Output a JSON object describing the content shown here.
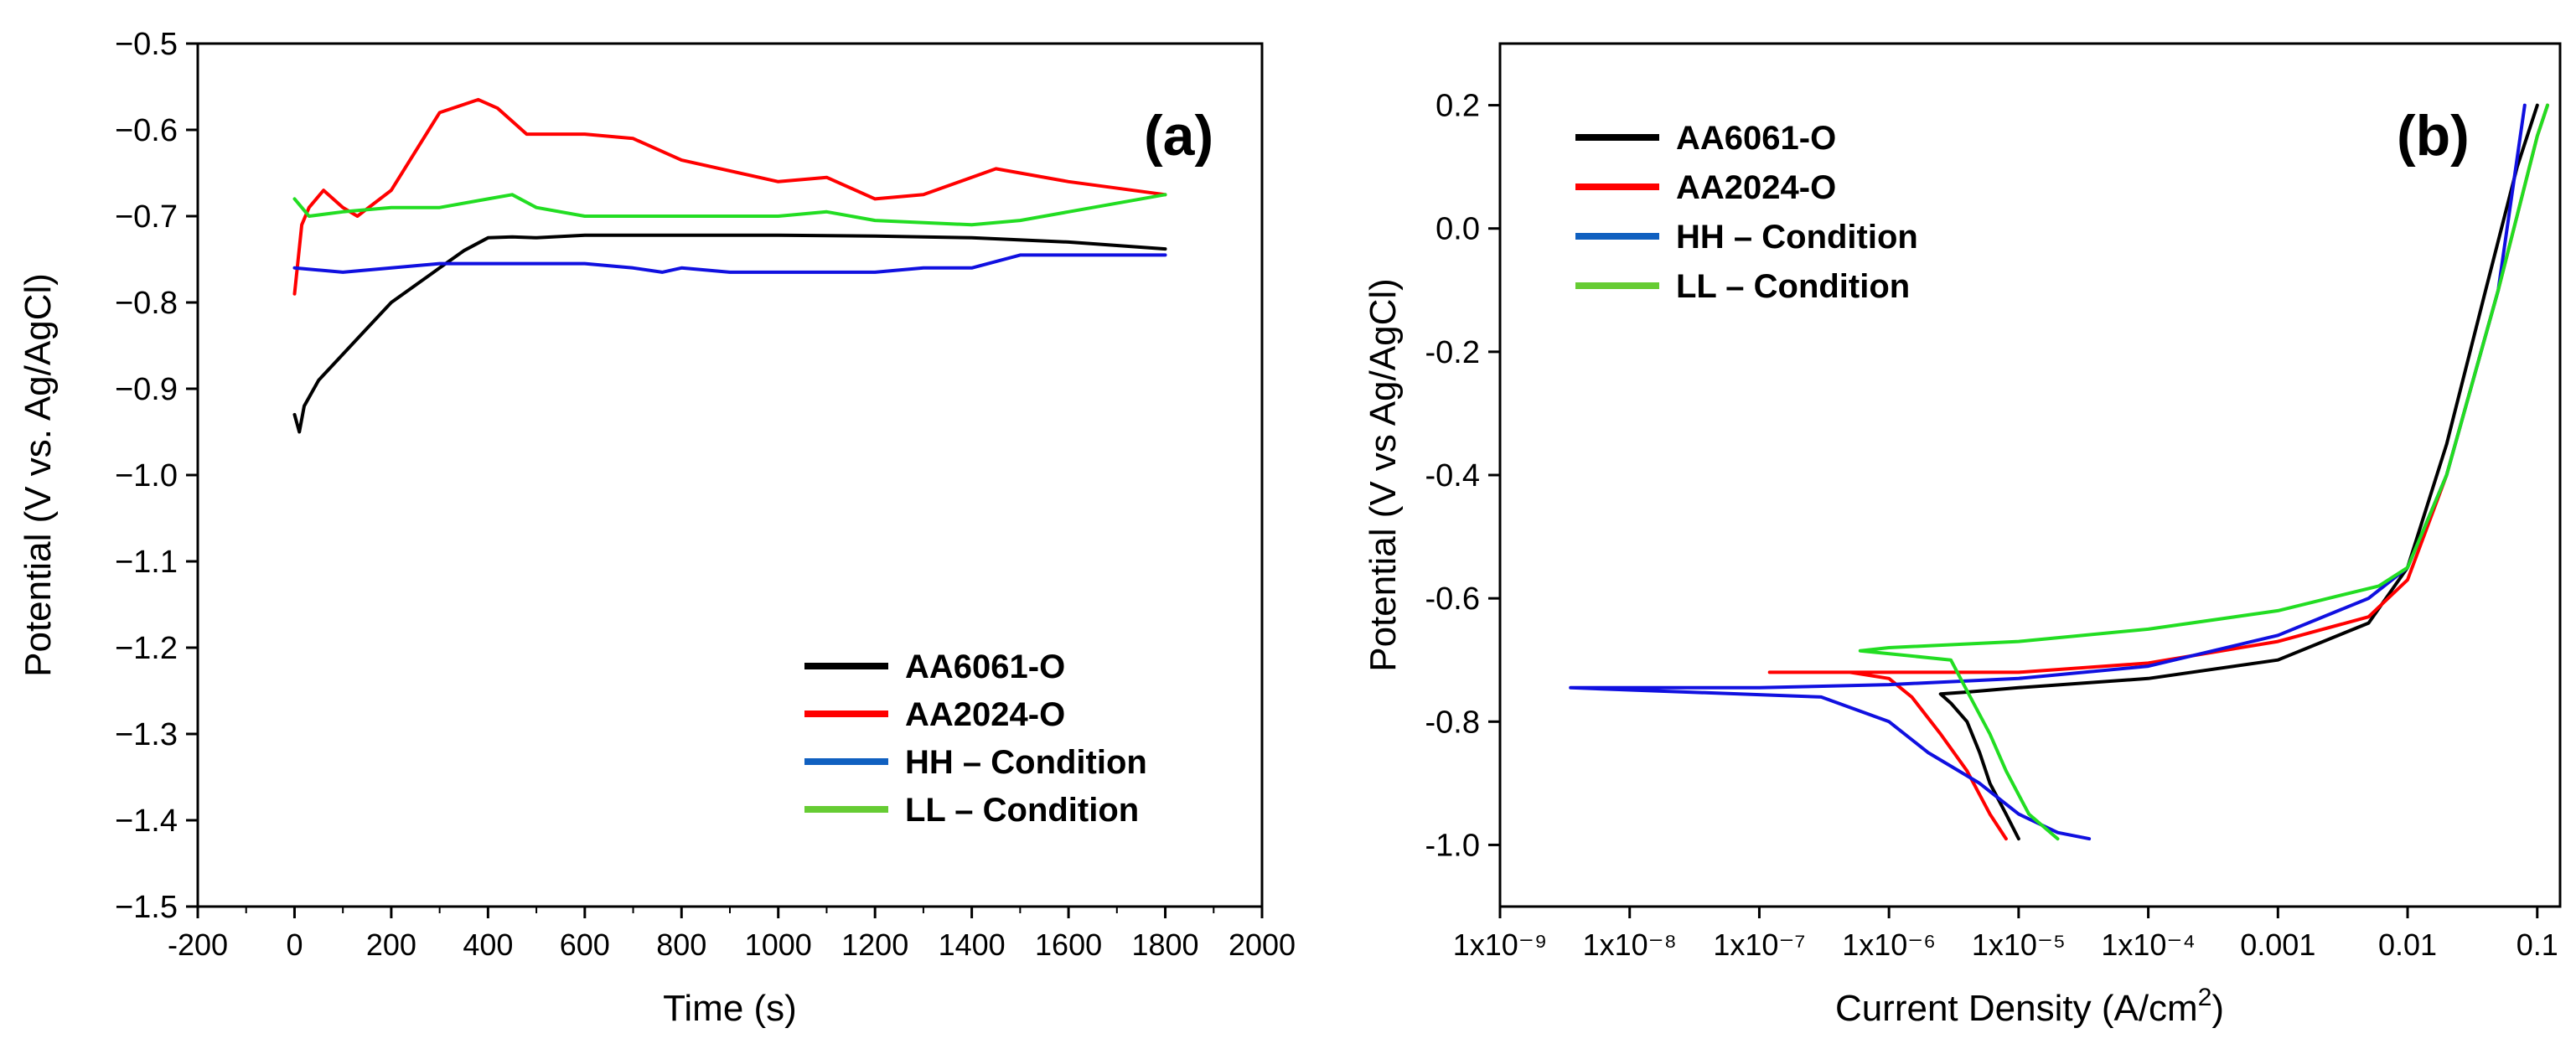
{
  "chart_data": [
    {
      "type": "line",
      "panel_label": "(a)",
      "xlabel": "Time (s)",
      "ylabel": "Potential (V vs. Ag/AgCl)",
      "xlim": [
        -200,
        2000
      ],
      "ylim": [
        -1.5,
        -0.5
      ],
      "y_inverted": true,
      "grid": false,
      "legend_position": "bottom-right",
      "x_ticks": [
        -200,
        0,
        200,
        400,
        600,
        800,
        1000,
        1200,
        1400,
        1600,
        1800,
        2000
      ],
      "x_tick_labels": [
        "-200",
        "0",
        "200",
        "400",
        "600",
        "800",
        "1000",
        "1200",
        "1400",
        "1600",
        "1800",
        "2000"
      ],
      "y_ticks": [
        -0.5,
        -0.6,
        -0.7,
        -0.8,
        -0.9,
        -1.0,
        -1.1,
        -1.2,
        -1.3,
        -1.4,
        -1.5
      ],
      "y_tick_labels": [
        "−0.5",
        "−0.6",
        "−0.7",
        "−0.8",
        "−0.9",
        "−1.0",
        "−1.1",
        "−1.2",
        "−1.3",
        "−1.4",
        "−1.5"
      ],
      "series": [
        {
          "name": "AA6061-O",
          "color": "#000000",
          "x": [
            0,
            10,
            20,
            50,
            100,
            150,
            200,
            250,
            300,
            350,
            400,
            450,
            500,
            600,
            800,
            1000,
            1200,
            1400,
            1600,
            1800
          ],
          "y": [
            -0.93,
            -0.95,
            -0.92,
            -0.89,
            -0.86,
            -0.83,
            -0.8,
            -0.78,
            -0.76,
            -0.74,
            -0.725,
            -0.724,
            -0.725,
            -0.722,
            -0.722,
            -0.722,
            -0.723,
            -0.725,
            -0.73,
            -0.738
          ]
        },
        {
          "name": "AA2024-O",
          "color": "#ff0000",
          "x": [
            0,
            15,
            30,
            60,
            100,
            130,
            200,
            300,
            380,
            420,
            480,
            600,
            700,
            800,
            1000,
            1100,
            1200,
            1300,
            1450,
            1600,
            1800
          ],
          "y": [
            -0.79,
            -0.71,
            -0.69,
            -0.67,
            -0.69,
            -0.7,
            -0.67,
            -0.58,
            -0.565,
            -0.575,
            -0.605,
            -0.605,
            -0.61,
            -0.635,
            -0.66,
            -0.655,
            -0.68,
            -0.675,
            -0.645,
            -0.66,
            -0.675
          ]
        },
        {
          "name": "HH – Condition",
          "color": "#1010e0",
          "x": [
            0,
            100,
            200,
            300,
            400,
            500,
            600,
            700,
            760,
            800,
            900,
            1000,
            1100,
            1200,
            1300,
            1400,
            1500,
            1600,
            1700,
            1800
          ],
          "y": [
            -0.76,
            -0.765,
            -0.76,
            -0.755,
            -0.755,
            -0.755,
            -0.755,
            -0.76,
            -0.765,
            -0.76,
            -0.765,
            -0.765,
            -0.765,
            -0.765,
            -0.76,
            -0.76,
            -0.745,
            -0.745,
            -0.745,
            -0.745
          ]
        },
        {
          "name": "LL – Condition",
          "color": "#22dd22",
          "x": [
            0,
            30,
            100,
            200,
            300,
            400,
            450,
            500,
            600,
            800,
            1000,
            1100,
            1200,
            1400,
            1500,
            1600,
            1800
          ],
          "y": [
            -0.68,
            -0.7,
            -0.695,
            -0.69,
            -0.69,
            -0.68,
            -0.675,
            -0.69,
            -0.7,
            -0.7,
            -0.7,
            -0.695,
            -0.705,
            -0.71,
            -0.705,
            -0.695,
            -0.675
          ]
        }
      ]
    },
    {
      "type": "line",
      "panel_label": "(b)",
      "xlabel": "Current Density (A/cm",
      "xlabel_superscript": "2",
      "xlabel_suffix": ")",
      "ylabel": "Potential (V vs Ag/AgCl)",
      "x_scale": "log",
      "xlim": [
        1e-09,
        0.15
      ],
      "ylim": [
        -1.1,
        0.3
      ],
      "grid": false,
      "legend_position": "top-left",
      "x_ticks": [
        1e-09,
        1e-08,
        1e-07,
        1e-06,
        1e-05,
        0.0001,
        0.001,
        0.01,
        0.1
      ],
      "x_tick_labels": [
        "1x10⁻⁹",
        "1x10⁻⁸",
        "1x10⁻⁷",
        "1x10⁻⁶",
        "1x10⁻⁵",
        "1x10⁻⁴",
        "0.001",
        "0.01",
        "0.1"
      ],
      "y_ticks": [
        0.2,
        0.0,
        -0.2,
        -0.4,
        -0.6,
        -0.8,
        -1.0
      ],
      "y_tick_labels": [
        "0.2",
        "0.0",
        "-0.2",
        "-0.4",
        "-0.6",
        "-0.8",
        "-1.0"
      ],
      "series": [
        {
          "name": "AA6061-O",
          "color": "#000000",
          "x": [
            1e-05,
            8e-06,
            6e-06,
            5e-06,
            4e-06,
            3e-06,
            2.5e-06,
            4e-06,
            1e-05,
            0.0001,
            0.001,
            0.005,
            0.01,
            0.02,
            0.04,
            0.07,
            0.1
          ],
          "y": [
            -0.99,
            -0.95,
            -0.9,
            -0.85,
            -0.8,
            -0.77,
            -0.755,
            -0.752,
            -0.745,
            -0.73,
            -0.7,
            -0.64,
            -0.55,
            -0.35,
            -0.1,
            0.1,
            0.2
          ]
        },
        {
          "name": "AA2024-O",
          "color": "#ff0000",
          "x": [
            8e-06,
            6e-06,
            4e-06,
            2.5e-06,
            1.5e-06,
            1e-06,
            5e-07,
            1.2e-07,
            1e-06,
            1e-05,
            0.0001,
            0.001,
            0.005,
            0.01,
            0.02,
            0.05,
            0.1,
            0.12
          ],
          "y": [
            -0.99,
            -0.95,
            -0.88,
            -0.82,
            -0.76,
            -0.73,
            -0.72,
            -0.72,
            -0.72,
            -0.72,
            -0.705,
            -0.67,
            -0.63,
            -0.57,
            -0.4,
            -0.1,
            0.15,
            0.2
          ]
        },
        {
          "name": "HH – Condition",
          "color": "#1010e0",
          "x": [
            3.5e-05,
            2e-05,
            1e-05,
            5e-06,
            2e-06,
            1e-06,
            3e-07,
            3.5e-09,
            1e-07,
            1e-06,
            1e-05,
            0.0001,
            0.001,
            0.005,
            0.01,
            0.02,
            0.05,
            0.08
          ],
          "y": [
            -0.99,
            -0.98,
            -0.95,
            -0.9,
            -0.85,
            -0.8,
            -0.76,
            -0.745,
            -0.745,
            -0.74,
            -0.73,
            -0.71,
            -0.66,
            -0.6,
            -0.55,
            -0.4,
            -0.1,
            0.2
          ]
        },
        {
          "name": "LL – Condition",
          "color": "#22dd22",
          "x": [
            2e-05,
            1.2e-05,
            8e-06,
            6e-06,
            4e-06,
            3e-06,
            6e-07,
            1e-06,
            1e-05,
            0.0001,
            0.001,
            0.006,
            0.01,
            0.02,
            0.05,
            0.1,
            0.12
          ],
          "y": [
            -0.99,
            -0.95,
            -0.88,
            -0.82,
            -0.75,
            -0.7,
            -0.685,
            -0.68,
            -0.67,
            -0.65,
            -0.62,
            -0.58,
            -0.55,
            -0.4,
            -0.1,
            0.15,
            0.2
          ]
        }
      ]
    }
  ]
}
